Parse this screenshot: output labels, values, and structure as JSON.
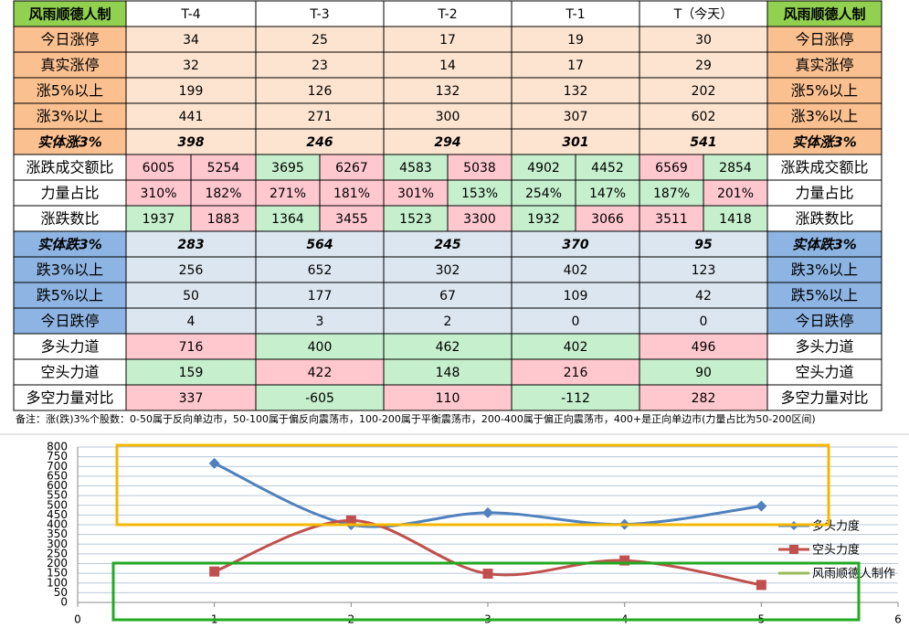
{
  "table": {
    "corner": "风雨顺德人制",
    "columns": [
      "T-4",
      "T-3",
      "T-2",
      "T-1",
      "T（今天）"
    ],
    "rows": [
      {
        "label": "今日涨停",
        "values": [
          "34",
          "25",
          "17",
          "19",
          "30"
        ],
        "label_fill": "#fac090",
        "fills": [
          "#fde4d0",
          "#fde4d0",
          "#fde4d0",
          "#fde4d0",
          "#fde4d0"
        ]
      },
      {
        "label": "真实涨停",
        "values": [
          "32",
          "23",
          "14",
          "17",
          "29"
        ],
        "label_fill": "#fac090",
        "fills": [
          "#fde4d0",
          "#fde4d0",
          "#fde4d0",
          "#fde4d0",
          "#fde4d0"
        ]
      },
      {
        "label": "涨5%以上",
        "values": [
          "199",
          "126",
          "132",
          "132",
          "202"
        ],
        "label_fill": "#fac090",
        "fills": [
          "#fde4d0",
          "#fde4d0",
          "#fde4d0",
          "#fde4d0",
          "#fde4d0"
        ]
      },
      {
        "label": "涨3%以上",
        "values": [
          "441",
          "271",
          "300",
          "307",
          "602"
        ],
        "label_fill": "#fac090",
        "fills": [
          "#fde4d0",
          "#fde4d0",
          "#fde4d0",
          "#fde4d0",
          "#fde4d0"
        ]
      },
      {
        "label": "实体涨3%",
        "values": [
          "398",
          "246",
          "294",
          "301",
          "541"
        ],
        "label_fill": "#fac090",
        "fills": [
          "#fde4d0",
          "#fde4d0",
          "#fde4d0",
          "#fde4d0",
          "#fde4d0"
        ],
        "emphasis": "#00a040"
      },
      {
        "label": "涨跌成交额比",
        "values": [
          [
            "6005",
            "5254"
          ],
          [
            "3695",
            "6267"
          ],
          [
            "4583",
            "5038"
          ],
          [
            "4902",
            "4452"
          ],
          [
            "6569",
            "2854"
          ]
        ],
        "label_fill": "#ffffff",
        "fills": [
          [
            "#ffc7ce",
            "#ffc7ce"
          ],
          [
            "#c6efce",
            "#ffc7ce"
          ],
          [
            "#c6efce",
            "#ffc7ce"
          ],
          [
            "#c6efce",
            "#c6efce"
          ],
          [
            "#ffc7ce",
            "#c6efce"
          ]
        ]
      },
      {
        "label": "力量占比",
        "values": [
          [
            "310%",
            "182%"
          ],
          [
            "271%",
            "181%"
          ],
          [
            "301%",
            "153%"
          ],
          [
            "254%",
            "147%"
          ],
          [
            "187%",
            "201%"
          ]
        ],
        "label_fill": "#ffffff",
        "fills": [
          [
            "#ffc7ce",
            "#ffc7ce"
          ],
          [
            "#ffc7ce",
            "#ffc7ce"
          ],
          [
            "#ffc7ce",
            "#c6efce"
          ],
          [
            "#c6efce",
            "#c6efce"
          ],
          [
            "#c6efce",
            "#ffc7ce"
          ]
        ]
      },
      {
        "label": "涨跌数比",
        "values": [
          [
            "1937",
            "1883"
          ],
          [
            "1364",
            "3455"
          ],
          [
            "1523",
            "3300"
          ],
          [
            "1932",
            "3066"
          ],
          [
            "3511",
            "1418"
          ]
        ],
        "label_fill": "#ffffff",
        "fills": [
          [
            "#c6efce",
            "#ffc7ce"
          ],
          [
            "#c6efce",
            "#ffc7ce"
          ],
          [
            "#c6efce",
            "#ffc7ce"
          ],
          [
            "#c6efce",
            "#ffc7ce"
          ],
          [
            "#ffc7ce",
            "#c6efce"
          ]
        ]
      },
      {
        "label": "实体跌3%",
        "values": [
          "283",
          "564",
          "245",
          "370",
          "95"
        ],
        "label_fill": "#8db4e2",
        "fills": [
          "#dce6f1",
          "#dce6f1",
          "#dce6f1",
          "#dce6f1",
          "#dce6f1"
        ],
        "emphasis": "#e00000"
      },
      {
        "label": "跌3%以上",
        "values": [
          "256",
          "652",
          "302",
          "402",
          "123"
        ],
        "label_fill": "#8db4e2",
        "fills": [
          "#dce6f1",
          "#dce6f1",
          "#dce6f1",
          "#dce6f1",
          "#dce6f1"
        ]
      },
      {
        "label": "跌5%以上",
        "values": [
          "50",
          "177",
          "67",
          "109",
          "42"
        ],
        "label_fill": "#8db4e2",
        "fills": [
          "#dce6f1",
          "#dce6f1",
          "#dce6f1",
          "#dce6f1",
          "#dce6f1"
        ]
      },
      {
        "label": "今日跌停",
        "values": [
          "4",
          "3",
          "2",
          "0",
          "0"
        ],
        "label_fill": "#8db4e2",
        "fills": [
          "#dce6f1",
          "#dce6f1",
          "#dce6f1",
          "#dce6f1",
          "#dce6f1"
        ]
      },
      {
        "label": "多头力道",
        "values": [
          "716",
          "400",
          "462",
          "402",
          "496"
        ],
        "label_fill": "#ffffff",
        "fills": [
          "#ffc7ce",
          "#c6efce",
          "#c6efce",
          "#c6efce",
          "#ffc7ce"
        ]
      },
      {
        "label": "空头力道",
        "values": [
          "159",
          "422",
          "148",
          "216",
          "90"
        ],
        "label_fill": "#ffffff",
        "fills": [
          "#c6efce",
          "#ffc7ce",
          "#c6efce",
          "#ffc7ce",
          "#c6efce"
        ]
      },
      {
        "label": "多空力量对比",
        "values": [
          "337",
          "-605",
          "110",
          "-112",
          "282"
        ],
        "label_fill": "#ffffff",
        "fills": [
          "#ffc7ce",
          "#c6efce",
          "#ffc7ce",
          "#c6efce",
          "#ffc7ce"
        ]
      }
    ],
    "note": "备注：涨(跌)3%个股数：0-50属于反向单边市，50-100属于偏反向震荡市，100-200属于平衡震荡市，200-400属于偏正向震荡市，400+是正向单边市(力量占比为50-200区间)"
  },
  "chart_data": {
    "type": "line",
    "x": [
      1,
      2,
      3,
      4,
      5
    ],
    "series": [
      {
        "name": "多头力度",
        "color": "#4f81bd",
        "marker": "diamond",
        "values": [
          716,
          400,
          462,
          402,
          496
        ]
      },
      {
        "name": "空头力度",
        "color": "#c0504d",
        "marker": "square",
        "values": [
          159,
          422,
          148,
          216,
          90
        ]
      },
      {
        "name": "风雨顺德人制作",
        "color": "#9bbb59",
        "marker": "none",
        "values": [
          null,
          null,
          null,
          null,
          null
        ]
      }
    ],
    "xlim": [
      0,
      6
    ],
    "xticks": [
      0,
      1,
      2,
      3,
      4,
      5,
      6
    ],
    "ylim": [
      0,
      800
    ],
    "yticks": [
      0,
      50,
      100,
      150,
      200,
      250,
      300,
      350,
      400,
      450,
      500,
      550,
      600,
      650,
      700,
      750,
      800
    ],
    "grid": true,
    "smooth": true,
    "legend": "right"
  }
}
